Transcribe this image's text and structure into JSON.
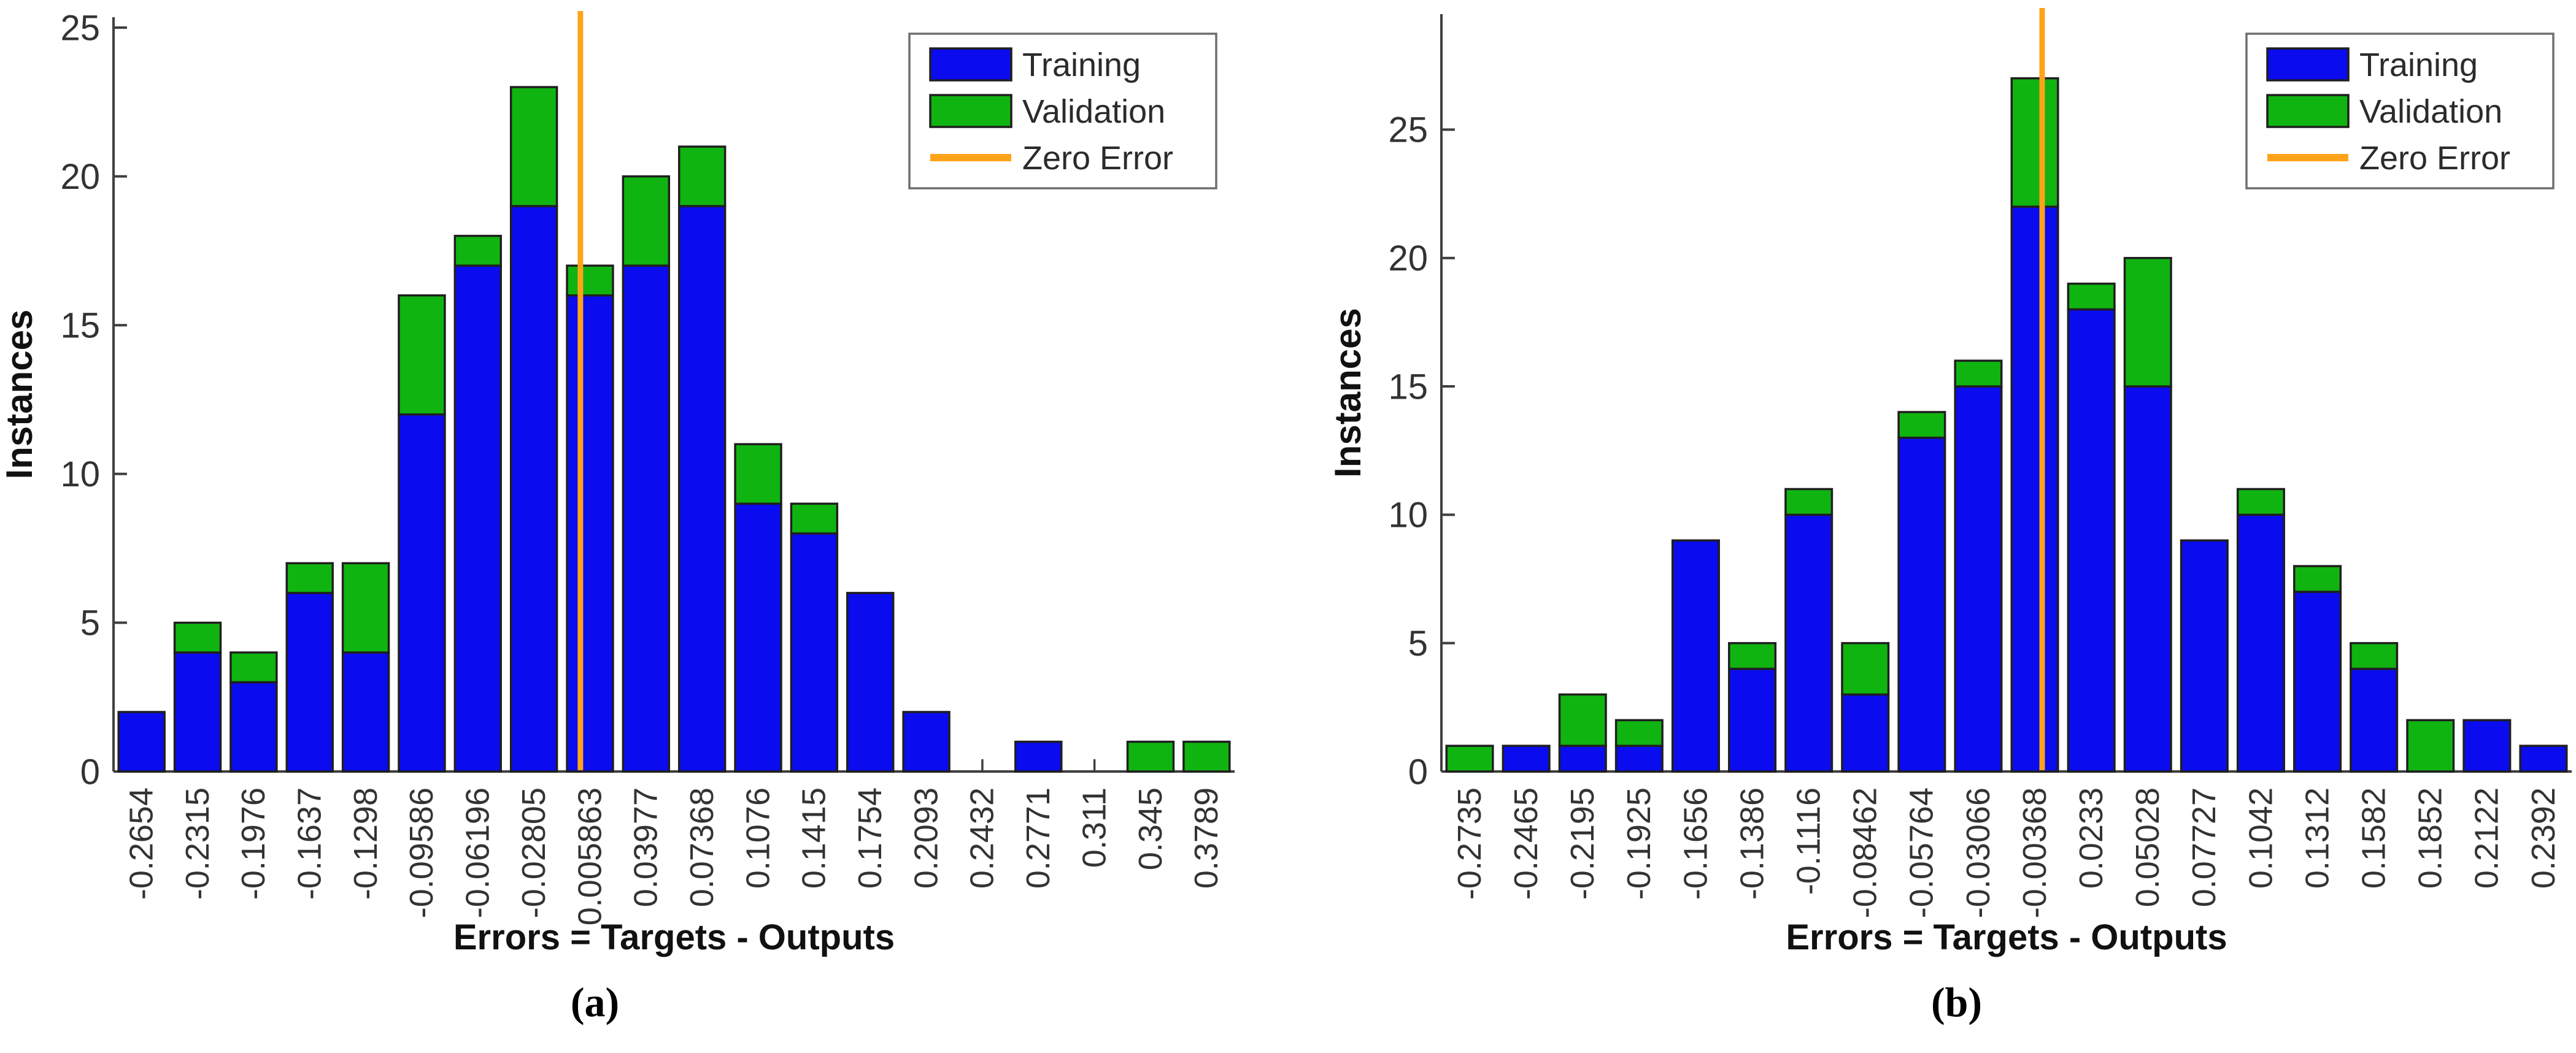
{
  "figure": {
    "background": "#ffffff",
    "colors": {
      "training": "#0b0bef",
      "validation": "#10b410",
      "zero_error": "#ffa319",
      "bar_edge": "#1f1f1f",
      "axis": "#3f3f3f",
      "tick_label": "#333333",
      "label": "#111111",
      "legend_border": "#6f6f6f",
      "legend_text": "#2b2b2b"
    }
  },
  "chart_data": [
    {
      "type": "bar",
      "stacked": true,
      "caption": "(a)",
      "xlabel": "Errors = Targets - Outputs",
      "ylabel": "Instances",
      "legend_position": "upper-right",
      "grid": false,
      "ylim": [
        0,
        25.35
      ],
      "yticks": [
        0,
        5,
        10,
        15,
        20,
        25
      ],
      "categories": [
        "-0.2654",
        "-0.2315",
        "-0.1976",
        "-0.1637",
        "-0.1298",
        "-0.09586",
        "-0.06196",
        "-0.02805",
        "0.005863",
        "0.03977",
        "0.07368",
        "0.1076",
        "0.1415",
        "0.1754",
        "0.2093",
        "0.2432",
        "0.2771",
        "0.311",
        "0.345",
        "0.3789"
      ],
      "series": [
        {
          "name": "Training",
          "color_key": "training",
          "values": [
            2,
            4,
            3,
            6,
            4,
            12,
            17,
            19,
            16,
            17,
            19,
            9,
            8,
            6,
            2,
            0,
            1,
            0,
            0,
            0
          ]
        },
        {
          "name": "Validation",
          "color_key": "validation",
          "values": [
            0,
            1,
            1,
            1,
            3,
            4,
            1,
            4,
            1,
            3,
            2,
            2,
            1,
            0,
            0,
            0,
            0,
            0,
            1,
            1
          ]
        }
      ],
      "totals": [
        2,
        5,
        4,
        7,
        7,
        16,
        18,
        23,
        17,
        20,
        21,
        11,
        9,
        6,
        2,
        0,
        1,
        0,
        1,
        1
      ],
      "zero_error_line": {
        "label": "Zero Error",
        "x_value": 0
      }
    },
    {
      "type": "bar",
      "stacked": true,
      "caption": "(b)",
      "xlabel": "Errors = Targets - Outputs",
      "ylabel": "Instances",
      "legend_position": "upper-right",
      "grid": false,
      "ylim": [
        0,
        29.5
      ],
      "yticks": [
        0,
        5,
        10,
        15,
        20,
        25
      ],
      "categories": [
        "-0.2735",
        "-0.2465",
        "-0.2195",
        "-0.1925",
        "-0.1656",
        "-0.1386",
        "-0.1116",
        "-0.08462",
        "-0.05764",
        "-0.03066",
        "-0.00368",
        "0.0233",
        "0.05028",
        "0.07727",
        "0.1042",
        "0.1312",
        "0.1582",
        "0.1852",
        "0.2122",
        "0.2392"
      ],
      "series": [
        {
          "name": "Training",
          "color_key": "training",
          "values": [
            0,
            1,
            1,
            1,
            9,
            4,
            10,
            3,
            13,
            15,
            22,
            18,
            15,
            9,
            10,
            7,
            4,
            0,
            2,
            1
          ]
        },
        {
          "name": "Validation",
          "color_key": "validation",
          "values": [
            1,
            0,
            2,
            1,
            0,
            1,
            1,
            2,
            1,
            1,
            5,
            1,
            5,
            0,
            1,
            1,
            1,
            2,
            0,
            0
          ]
        }
      ],
      "totals": [
        1,
        1,
        3,
        2,
        9,
        5,
        11,
        5,
        14,
        16,
        27,
        19,
        20,
        9,
        11,
        8,
        5,
        2,
        2,
        1
      ],
      "zero_error_line": {
        "label": "Zero Error",
        "x_value": 0
      }
    }
  ]
}
